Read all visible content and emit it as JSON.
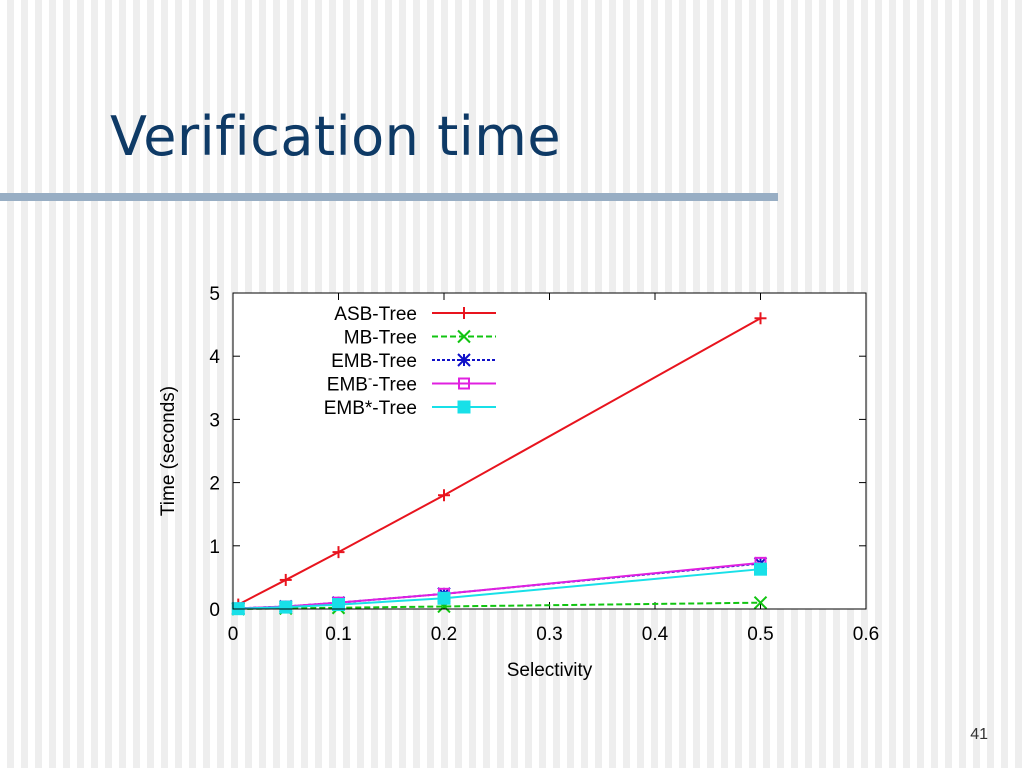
{
  "slide": {
    "title": "Verification time",
    "page_number": "41"
  },
  "colors": {
    "title": "#0e3a66",
    "rule": "#98aec4"
  },
  "chart_data": {
    "type": "line",
    "xlabel": "Selectivity",
    "ylabel": "Time (seconds)",
    "xlim": [
      0,
      0.6
    ],
    "ylim": [
      0,
      5
    ],
    "xticks": [
      0,
      0.1,
      0.2,
      0.3,
      0.4,
      0.5,
      0.6
    ],
    "yticks": [
      0,
      1,
      2,
      3,
      4,
      5
    ],
    "legend_position": "top-left",
    "grid": false,
    "series": [
      {
        "name": "ASB-Tree",
        "name_sup": "",
        "name_suffix": "",
        "color": "#e8141e",
        "marker": "plus",
        "dash": "",
        "x": [
          0.005,
          0.05,
          0.1,
          0.2,
          0.5
        ],
        "y": [
          0.07,
          0.46,
          0.9,
          1.8,
          4.6
        ]
      },
      {
        "name": "MB-Tree",
        "name_sup": "",
        "name_suffix": "",
        "color": "#11c411",
        "marker": "cross",
        "dash": "6,3",
        "x": [
          0.005,
          0.05,
          0.1,
          0.2,
          0.5
        ],
        "y": [
          0.0,
          0.01,
          0.02,
          0.04,
          0.1
        ]
      },
      {
        "name": "EMB-Tree",
        "name_sup": "",
        "name_suffix": "",
        "color": "#1010c8",
        "marker": "star",
        "dash": "3,2",
        "x": [
          0.005,
          0.05,
          0.1,
          0.2,
          0.5
        ],
        "y": [
          0.01,
          0.04,
          0.1,
          0.24,
          0.72
        ]
      },
      {
        "name": "EMB",
        "name_sup": "-",
        "name_suffix": "-Tree",
        "color": "#e020e0",
        "marker": "square-open",
        "dash": "",
        "x": [
          0.005,
          0.05,
          0.1,
          0.2,
          0.5
        ],
        "y": [
          0.01,
          0.04,
          0.1,
          0.24,
          0.73
        ]
      },
      {
        "name": "EMB*-Tree",
        "name_sup": "",
        "name_suffix": "",
        "color": "#18e0e8",
        "marker": "square-filled",
        "dash": "",
        "x": [
          0.005,
          0.05,
          0.1,
          0.2,
          0.5
        ],
        "y": [
          0.005,
          0.03,
          0.07,
          0.17,
          0.63
        ]
      }
    ]
  }
}
